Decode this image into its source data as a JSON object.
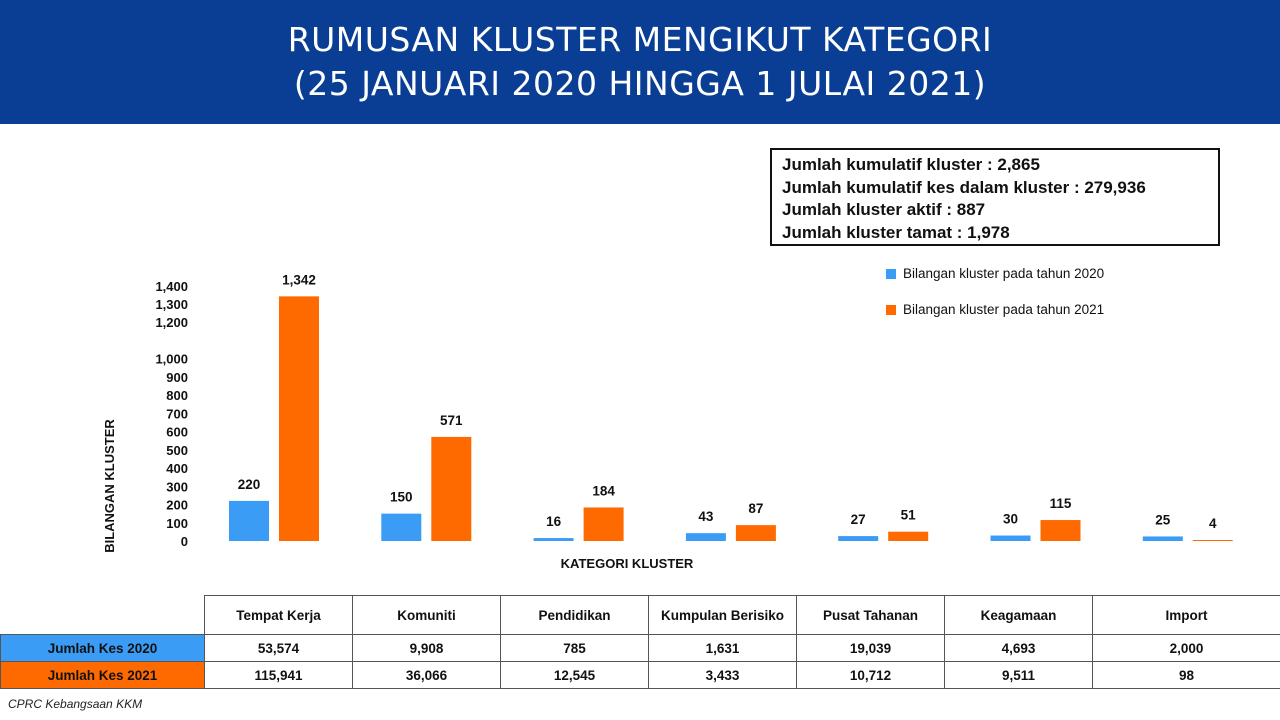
{
  "header": {
    "title_line1": "RUMUSAN KLUSTER MENGIKUT KATEGORI",
    "title_line2": "(25 JANUARI 2020 HINGGA 1 JULAI 2021)"
  },
  "colors": {
    "header_bg": "#0a3e94",
    "series_2020": "#3a9cf5",
    "series_2021": "#ff6a00"
  },
  "summary": {
    "line1": "Jumlah kumulatif kluster : 2,865",
    "line2": "Jumlah kumulatif kes dalam kluster : 279,936",
    "line3": "Jumlah kluster aktif : 887",
    "line4": "Jumlah kluster tamat : 1,978"
  },
  "chart_data": {
    "type": "bar",
    "xlabel": "KATEGORI KLUSTER",
    "ylabel": "BILANGAN KLUSTER",
    "ylim": [
      0,
      1400
    ],
    "yticks": [
      0,
      100,
      200,
      300,
      400,
      500,
      600,
      700,
      800,
      900,
      1000,
      1200,
      1300,
      1400
    ],
    "ytick_labels": [
      "0",
      "100",
      "200",
      "300",
      "400",
      "500",
      "600",
      "700",
      "800",
      "900",
      "1,000",
      "1,200",
      "1,300",
      "1,400"
    ],
    "categories": [
      "Tempat Kerja",
      "Komuniti",
      "Pendidikan",
      "Kumpulan Berisiko",
      "Pusat Tahanan",
      "Keagamaan",
      "Import"
    ],
    "series": [
      {
        "name": "Bilangan kluster pada tahun 2020",
        "values": [
          220,
          150,
          16,
          43,
          27,
          30,
          25
        ],
        "labels": [
          "220",
          "150",
          "16",
          "43",
          "27",
          "30",
          "25"
        ]
      },
      {
        "name": "Bilangan kluster pada tahun 2021",
        "values": [
          1342,
          571,
          184,
          87,
          51,
          115,
          4
        ],
        "labels": [
          "1,342",
          "571",
          "184",
          "87",
          "51",
          "115",
          "4"
        ]
      }
    ],
    "legend_position": "top-right",
    "grid": false
  },
  "table": {
    "columns": [
      "Tempat Kerja",
      "Komuniti",
      "Pendidikan",
      "Kumpulan Berisiko",
      "Pusat Tahanan",
      "Keagamaan",
      "Import"
    ],
    "rows": [
      {
        "label": "Jumlah Kes 2020",
        "values": [
          "53,574",
          "9,908",
          "785",
          "1,631",
          "19,039",
          "4,693",
          "2,000"
        ]
      },
      {
        "label": "Jumlah Kes 2021",
        "values": [
          "115,941",
          "36,066",
          "12,545",
          "3,433",
          "10,712",
          "9,511",
          "98"
        ]
      }
    ]
  },
  "footer": {
    "source": "CPRC Kebangsaan KKM"
  }
}
